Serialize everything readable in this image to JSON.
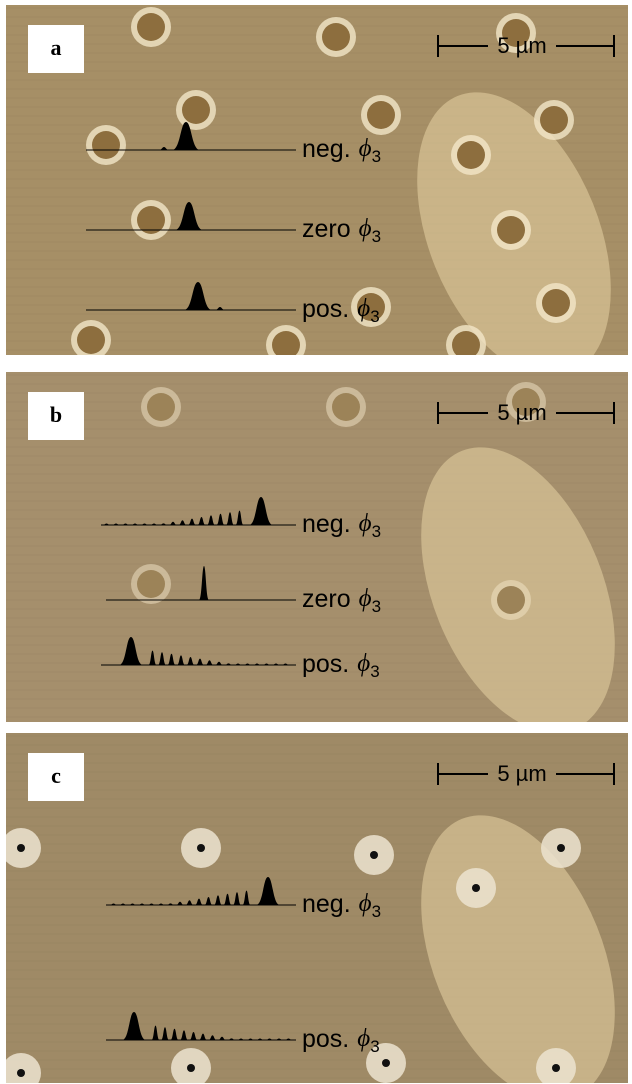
{
  "panels": [
    {
      "label": "a",
      "scale_bar": "5 µm",
      "pulses": [
        {
          "prefix": "neg.",
          "symbol": "ϕ",
          "subscript": "3"
        },
        {
          "prefix": "zero",
          "symbol": "ϕ",
          "subscript": "3"
        },
        {
          "prefix": "pos.",
          "symbol": "ϕ",
          "subscript": "3"
        }
      ]
    },
    {
      "label": "b",
      "scale_bar": "5 µm",
      "pulses": [
        {
          "prefix": "neg.",
          "symbol": "ϕ",
          "subscript": "3"
        },
        {
          "prefix": "zero",
          "symbol": "ϕ",
          "subscript": "3"
        },
        {
          "prefix": "pos.",
          "symbol": "ϕ",
          "subscript": "3"
        }
      ]
    },
    {
      "label": "c",
      "scale_bar": "5 µm",
      "pulses": [
        {
          "prefix": "neg.",
          "symbol": "ϕ",
          "subscript": "3"
        },
        {
          "prefix": "pos.",
          "symbol": "ϕ",
          "subscript": "3"
        }
      ]
    }
  ]
}
